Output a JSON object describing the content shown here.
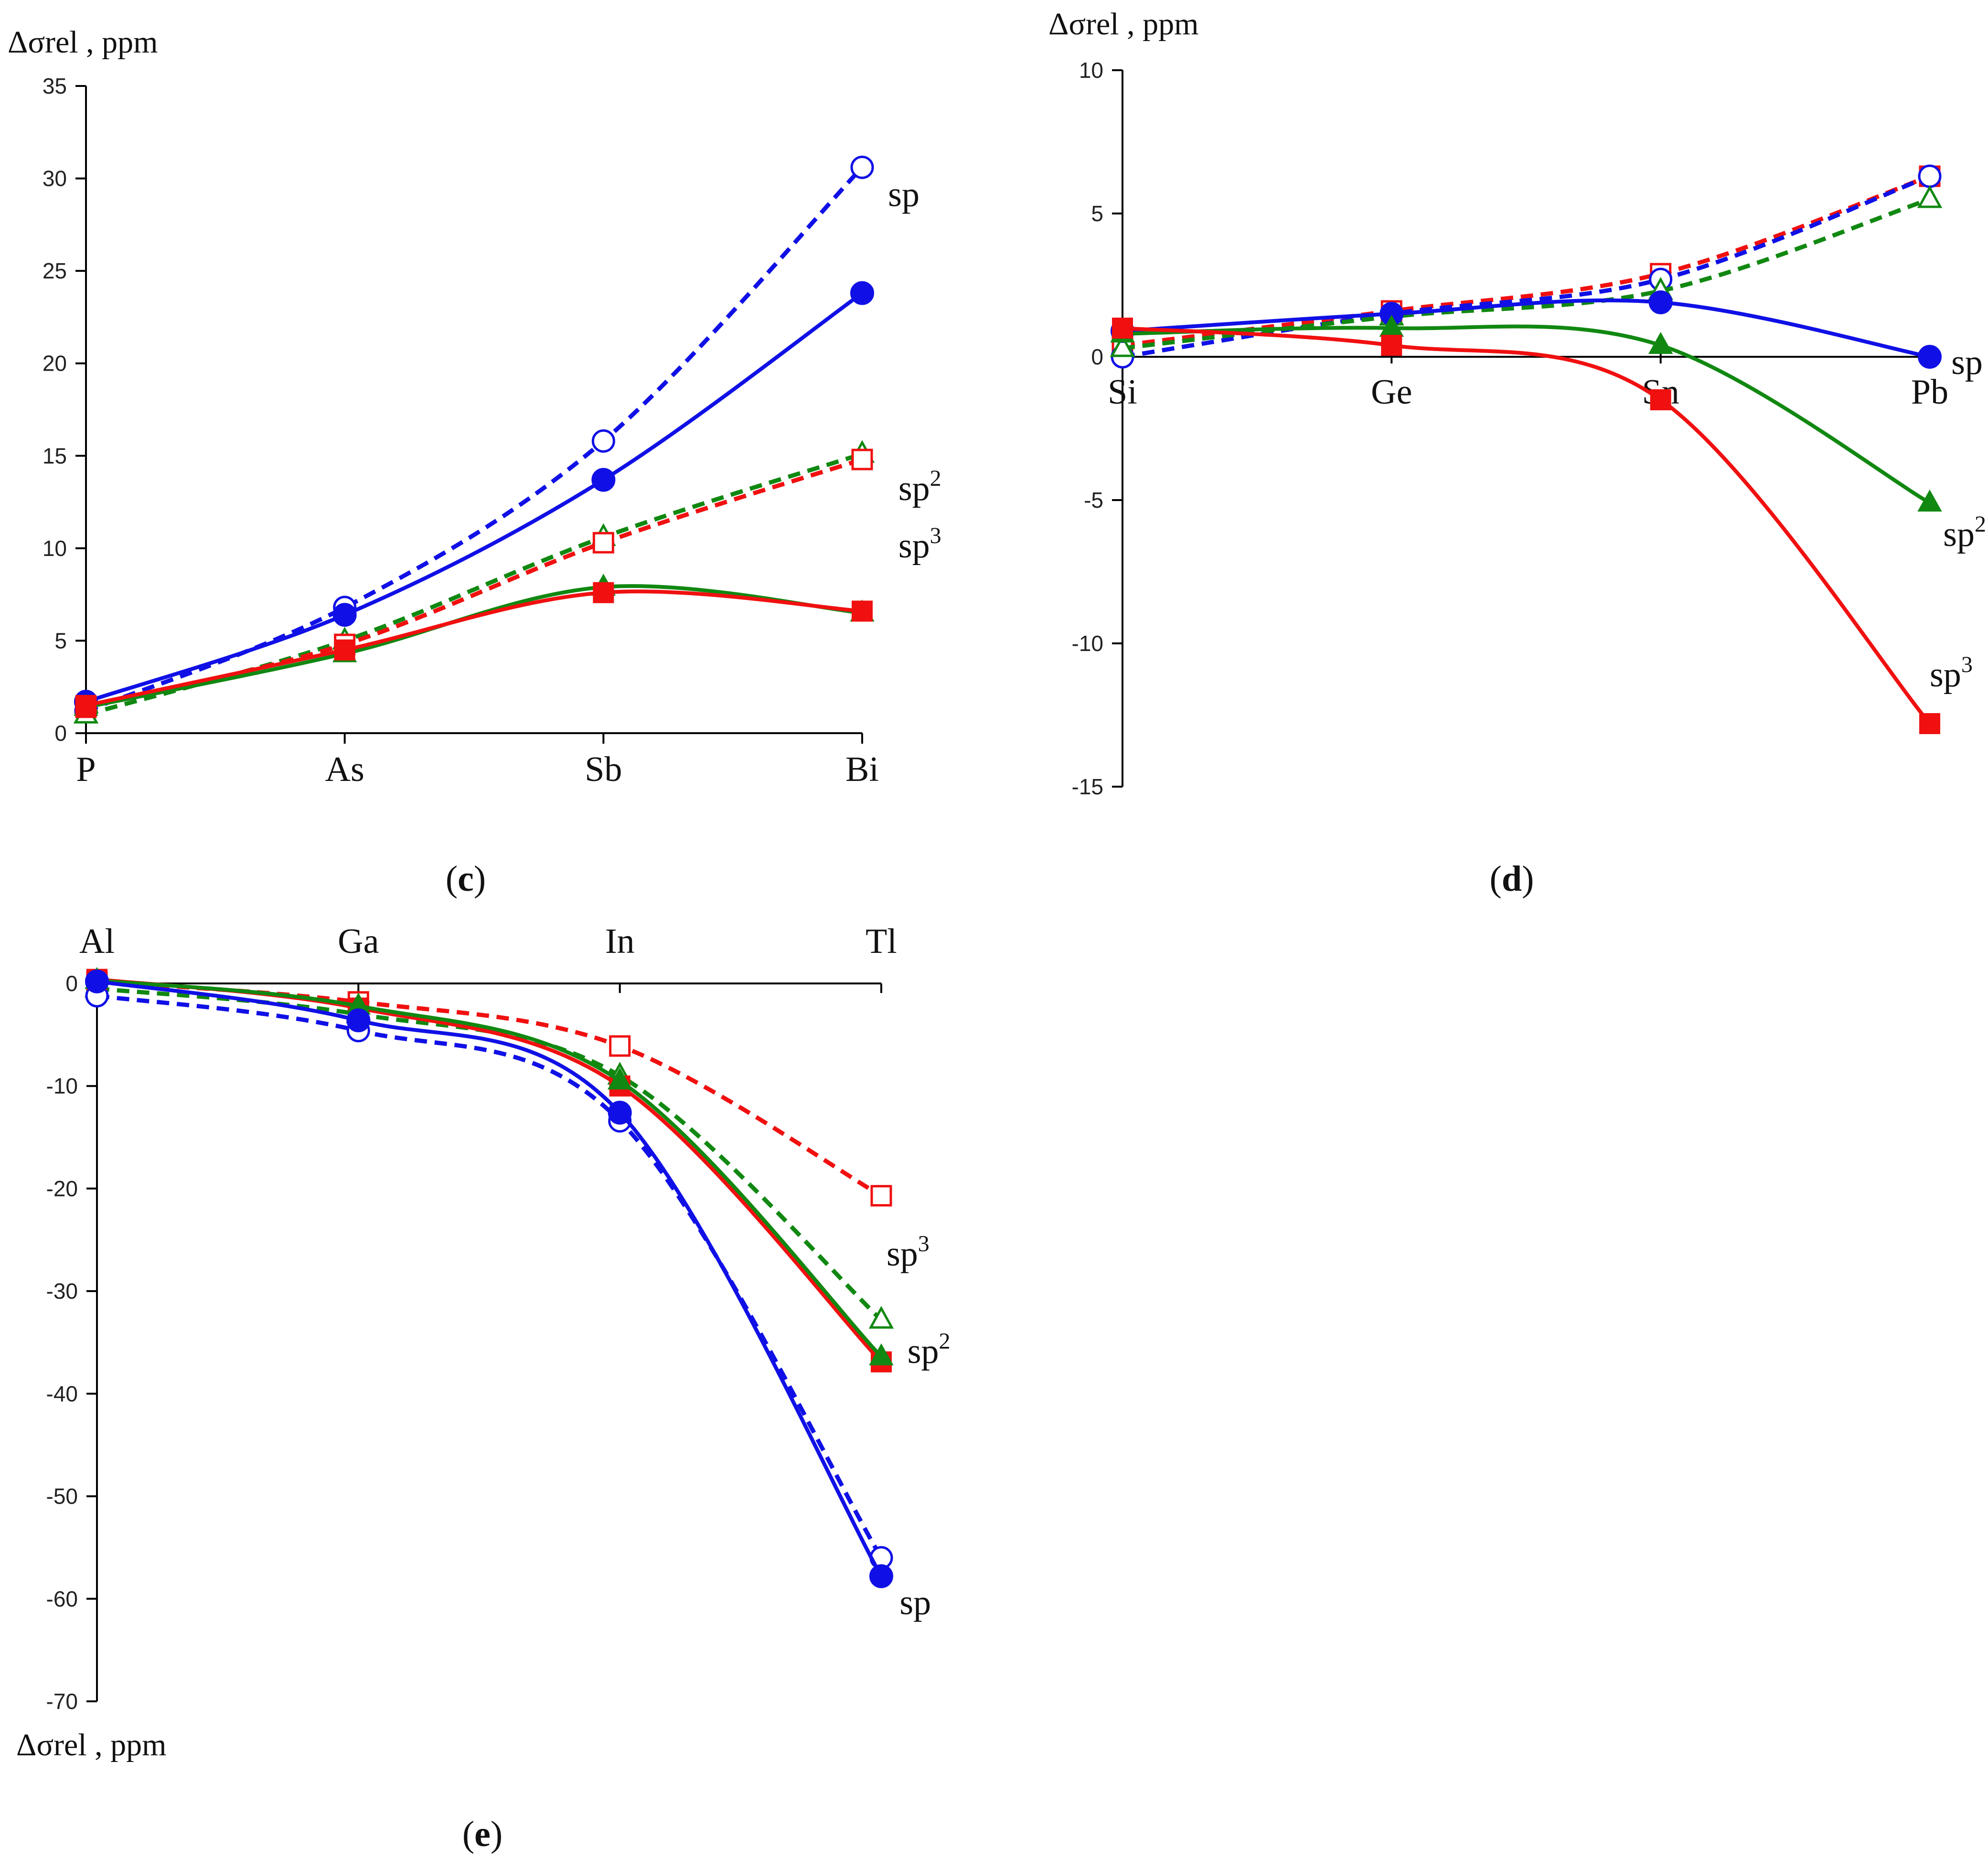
{
  "colors": {
    "sp": "#1010e6",
    "sp2": "#118811",
    "sp3": "#f01010",
    "axis": "#000000"
  },
  "chart_data": [
    {
      "panel": "c",
      "type": "line",
      "ylabel": "Δσrel , ppm",
      "ylim": [
        0,
        35
      ],
      "yticks": [
        0,
        5,
        10,
        15,
        20,
        25,
        30,
        35
      ],
      "categories": [
        "P",
        "As",
        "Sb",
        "Bi"
      ],
      "series": [
        {
          "name": "sp",
          "style": "dashed",
          "marker": "circle-open",
          "color": "sp",
          "values": [
            1.2,
            6.8,
            15.8,
            30.6
          ]
        },
        {
          "name": "sp",
          "style": "solid",
          "marker": "circle-filled",
          "color": "sp",
          "values": [
            1.7,
            6.4,
            13.7,
            23.8
          ]
        },
        {
          "name": "sp2",
          "style": "dashed",
          "marker": "triangle-open",
          "color": "sp2",
          "values": [
            1.0,
            5.0,
            10.6,
            15.1
          ]
        },
        {
          "name": "sp3",
          "style": "dashed",
          "marker": "square-open",
          "color": "sp3",
          "values": [
            1.4,
            4.8,
            10.3,
            14.8
          ]
        },
        {
          "name": "sp2",
          "style": "solid",
          "marker": "triangle-filled",
          "color": "sp2",
          "values": [
            1.4,
            4.3,
            7.9,
            6.5
          ]
        },
        {
          "name": "sp3",
          "style": "solid",
          "marker": "square-filled",
          "color": "sp3",
          "values": [
            1.5,
            4.5,
            7.6,
            6.6
          ]
        }
      ],
      "labels": [
        {
          "text": "sp",
          "sup": "",
          "x": 3.1,
          "y": 28.5
        },
        {
          "text": "sp",
          "sup": "2",
          "x": 3.14,
          "y": 12.6
        },
        {
          "text": "sp",
          "sup": "3",
          "x": 3.14,
          "y": 9.5
        }
      ]
    },
    {
      "panel": "d",
      "type": "line",
      "ylabel": "Δσrel , ppm",
      "ylim": [
        -15,
        10
      ],
      "yticks": [
        -15,
        -10,
        -5,
        0,
        5,
        10
      ],
      "categories": [
        "Si",
        "Ge",
        "Sn",
        "Pb"
      ],
      "series": [
        {
          "name": "sp3",
          "style": "dashed",
          "marker": "square-open",
          "color": "sp3",
          "values": [
            0.4,
            1.6,
            2.9,
            6.3
          ]
        },
        {
          "name": "sp",
          "style": "dashed",
          "marker": "circle-open",
          "color": "sp",
          "values": [
            0.0,
            1.5,
            2.7,
            6.3
          ]
        },
        {
          "name": "sp2",
          "style": "dashed",
          "marker": "triangle-open",
          "color": "sp2",
          "values": [
            0.3,
            1.4,
            2.3,
            5.5
          ]
        },
        {
          "name": "sp",
          "style": "solid",
          "marker": "circle-filled",
          "color": "sp",
          "values": [
            0.9,
            1.5,
            1.9,
            0.0
          ]
        },
        {
          "name": "sp2",
          "style": "solid",
          "marker": "triangle-filled",
          "color": "sp2",
          "values": [
            0.8,
            1.0,
            0.4,
            -5.1
          ]
        },
        {
          "name": "sp3",
          "style": "solid",
          "marker": "square-filled",
          "color": "sp3",
          "values": [
            1.0,
            0.4,
            -1.5,
            -12.8
          ]
        }
      ],
      "labels": [
        {
          "text": "sp",
          "sup": "",
          "x": 3.08,
          "y": -0.6
        },
        {
          "text": "sp",
          "sup": "2",
          "x": 3.05,
          "y": -6.6
        },
        {
          "text": "sp",
          "sup": "3",
          "x": 3.0,
          "y": -11.5
        }
      ]
    },
    {
      "panel": "e",
      "type": "line",
      "ylabel": "Δσrel , ppm",
      "ylim": [
        -70,
        0
      ],
      "yticks": [
        -70,
        -60,
        -50,
        -40,
        -30,
        -20,
        -10,
        0
      ],
      "categories": [
        "Al",
        "Ga",
        "In",
        "Tl"
      ],
      "series": [
        {
          "name": "sp3",
          "style": "dashed",
          "marker": "square-open",
          "color": "sp3",
          "values": [
            0.2,
            -1.8,
            -6.1,
            -20.7
          ]
        },
        {
          "name": "sp2",
          "style": "dashed",
          "marker": "triangle-open",
          "color": "sp2",
          "values": [
            -0.5,
            -3.0,
            -9.0,
            -32.8
          ]
        },
        {
          "name": "sp",
          "style": "dashed",
          "marker": "circle-open",
          "color": "sp",
          "values": [
            -1.2,
            -4.6,
            -13.4,
            -56.0
          ]
        },
        {
          "name": "sp3",
          "style": "solid",
          "marker": "square-filled",
          "color": "sp3",
          "values": [
            0.4,
            -2.4,
            -10.0,
            -36.9
          ]
        },
        {
          "name": "sp2",
          "style": "solid",
          "marker": "triangle-filled",
          "color": "sp2",
          "values": [
            0.3,
            -2.2,
            -9.5,
            -36.4
          ]
        },
        {
          "name": "sp",
          "style": "solid",
          "marker": "circle-filled",
          "color": "sp",
          "values": [
            0.2,
            -3.6,
            -12.6,
            -57.8
          ]
        }
      ],
      "labels": [
        {
          "text": "sp",
          "sup": "3",
          "x": 3.02,
          "y": -27.5
        },
        {
          "text": "sp",
          "sup": "2",
          "x": 3.1,
          "y": -37.0
        },
        {
          "text": "sp",
          "sup": "",
          "x": 3.07,
          "y": -61.5
        }
      ]
    }
  ],
  "panel_labels": [
    "c",
    "d",
    "e"
  ]
}
